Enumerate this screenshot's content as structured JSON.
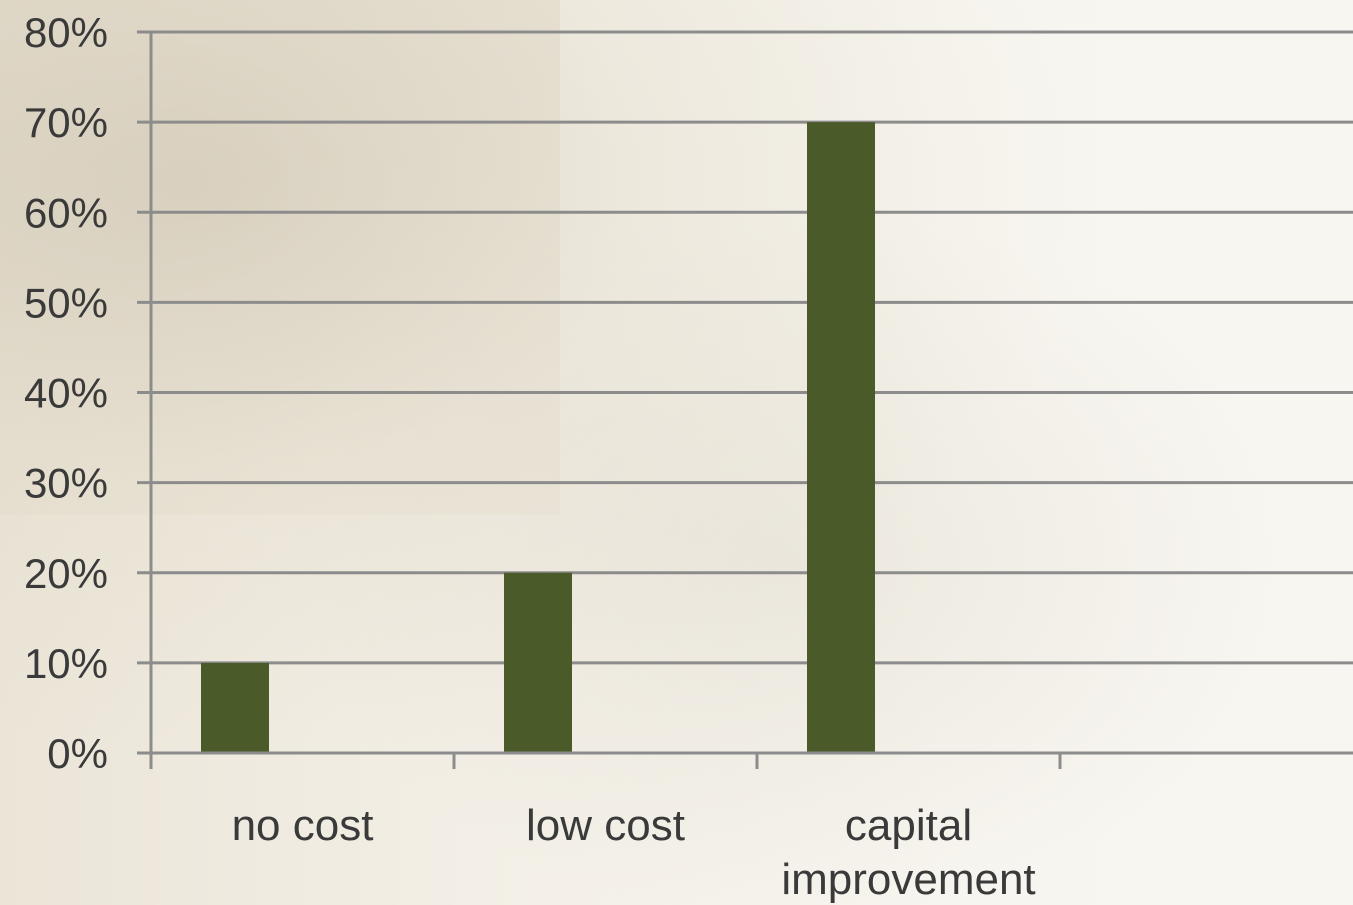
{
  "chart_data": {
    "type": "bar",
    "title": "",
    "xlabel": "",
    "ylabel": "",
    "categories": [
      [
        "no cost"
      ],
      [
        "low cost"
      ],
      [
        "capital",
        "improvement"
      ],
      [
        ""
      ]
    ],
    "values": [
      0.1,
      0.2,
      0.7,
      null
    ],
    "ylim": [
      0,
      0.8
    ],
    "y_ticks": [
      "0%",
      "10%",
      "20%",
      "30%",
      "40%",
      "50%",
      "60%",
      "70%",
      "80%"
    ],
    "grid": true,
    "legend": "none",
    "colors": {
      "bar": "#4a5a28",
      "grid": "#8c8c8c",
      "axis": "#8c8c8c",
      "text": "#3a3a3a"
    }
  }
}
